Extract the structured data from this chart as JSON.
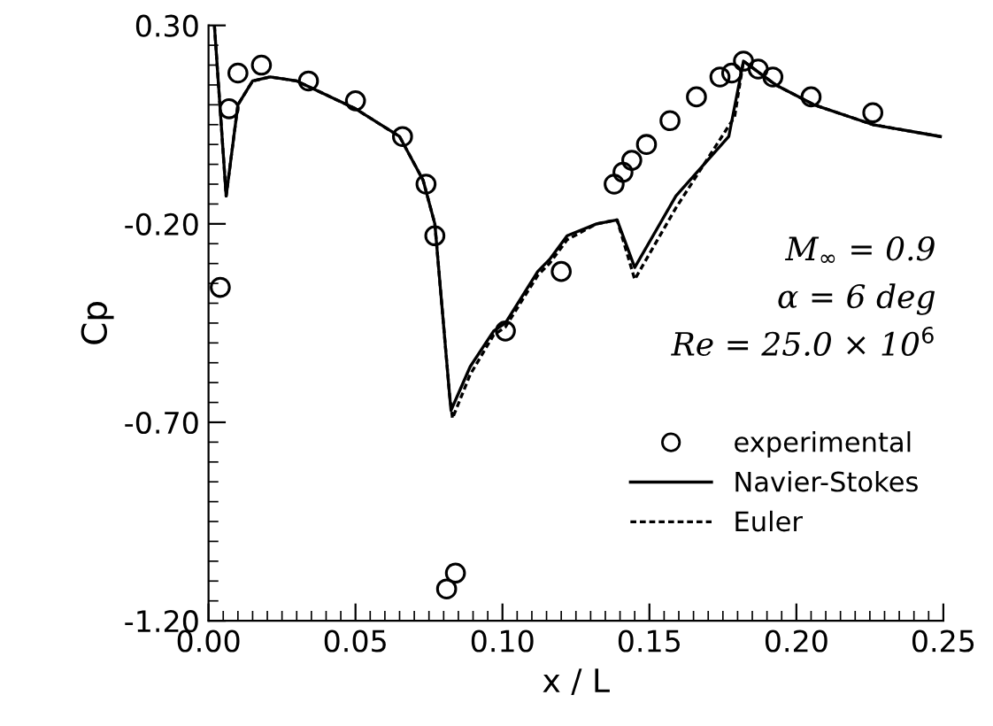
{
  "chart_data": {
    "type": "line",
    "xlabel": "x / L",
    "ylabel": "Cp",
    "xlim": [
      0,
      0.25
    ],
    "ylim": [
      -1.2,
      0.3
    ],
    "xticks": [
      {
        "value": 0,
        "label": "0.00"
      },
      {
        "value": 0.05,
        "label": "0.05"
      },
      {
        "value": 0.1,
        "label": "0.10"
      },
      {
        "value": 0.15,
        "label": "0.15"
      },
      {
        "value": 0.2,
        "label": "0.20"
      },
      {
        "value": 0.25,
        "label": "0.25"
      }
    ],
    "yticks": [
      {
        "value": -1.2,
        "label": "-1.20"
      },
      {
        "value": -0.7,
        "label": "-0.70"
      },
      {
        "value": -0.2,
        "label": "-0.20"
      },
      {
        "value": 0.3,
        "label": "0.30"
      }
    ],
    "grid": false,
    "legend": "bottom right",
    "annotations": [
      "M$_{∞}$ = 0.9",
      "α = 6 deg",
      "Re = 25.0 × 10$^{6}$"
    ],
    "series": [
      {
        "name": "experimental",
        "type": "scatter",
        "marker": "circle",
        "color": "#000000",
        "x": [
          0.004,
          0.007,
          0.01,
          0.018,
          0.034,
          0.05,
          0.066,
          0.074,
          0.077,
          0.081,
          0.084,
          0.101,
          0.12,
          0.138,
          0.141,
          0.144,
          0.149,
          0.157,
          0.166,
          0.174,
          0.178,
          0.182,
          0.187,
          0.192,
          0.205,
          0.226
        ],
        "values": [
          -0.36,
          0.09,
          0.18,
          0.2,
          0.16,
          0.11,
          0.02,
          -0.1,
          -0.23,
          -1.12,
          -1.08,
          -0.47,
          -0.32,
          -0.1,
          -0.07,
          -0.04,
          0.0,
          0.06,
          0.12,
          0.17,
          0.18,
          0.21,
          0.19,
          0.17,
          0.12,
          0.08
        ]
      },
      {
        "name": "Navier-Stokes",
        "line_style": "solid",
        "color": "#000000",
        "x": [
          0.002,
          0.006,
          0.01,
          0.015,
          0.021,
          0.03,
          0.05,
          0.065,
          0.073,
          0.077,
          0.082,
          0.0825,
          0.089,
          0.097,
          0.101,
          0.112,
          0.116,
          0.122,
          0.132,
          0.139,
          0.145,
          0.159,
          0.177,
          0.182,
          0.193,
          0.206,
          0.226,
          0.249
        ],
        "values": [
          0.3,
          -0.13,
          0.1,
          0.16,
          0.17,
          0.16,
          0.09,
          0.02,
          -0.09,
          -0.2,
          -0.63,
          -0.67,
          -0.56,
          -0.47,
          -0.45,
          -0.32,
          -0.29,
          -0.23,
          -0.2,
          -0.19,
          -0.31,
          -0.13,
          0.02,
          0.21,
          0.15,
          0.1,
          0.05,
          0.02
        ]
      },
      {
        "name": "Euler",
        "line_style": "dashed",
        "color": "#000000",
        "x": [
          0.002,
          0.006,
          0.01,
          0.015,
          0.021,
          0.03,
          0.05,
          0.065,
          0.073,
          0.077,
          0.082,
          0.083,
          0.089,
          0.097,
          0.101,
          0.112,
          0.116,
          0.122,
          0.132,
          0.139,
          0.145,
          0.159,
          0.179,
          0.182,
          0.193,
          0.206,
          0.226,
          0.249
        ],
        "values": [
          0.3,
          -0.13,
          0.1,
          0.16,
          0.17,
          0.16,
          0.09,
          0.02,
          -0.09,
          -0.2,
          -0.63,
          -0.69,
          -0.58,
          -0.48,
          -0.46,
          -0.33,
          -0.3,
          -0.24,
          -0.2,
          -0.19,
          -0.34,
          -0.16,
          0.07,
          0.21,
          0.15,
          0.1,
          0.05,
          0.02
        ]
      }
    ]
  }
}
